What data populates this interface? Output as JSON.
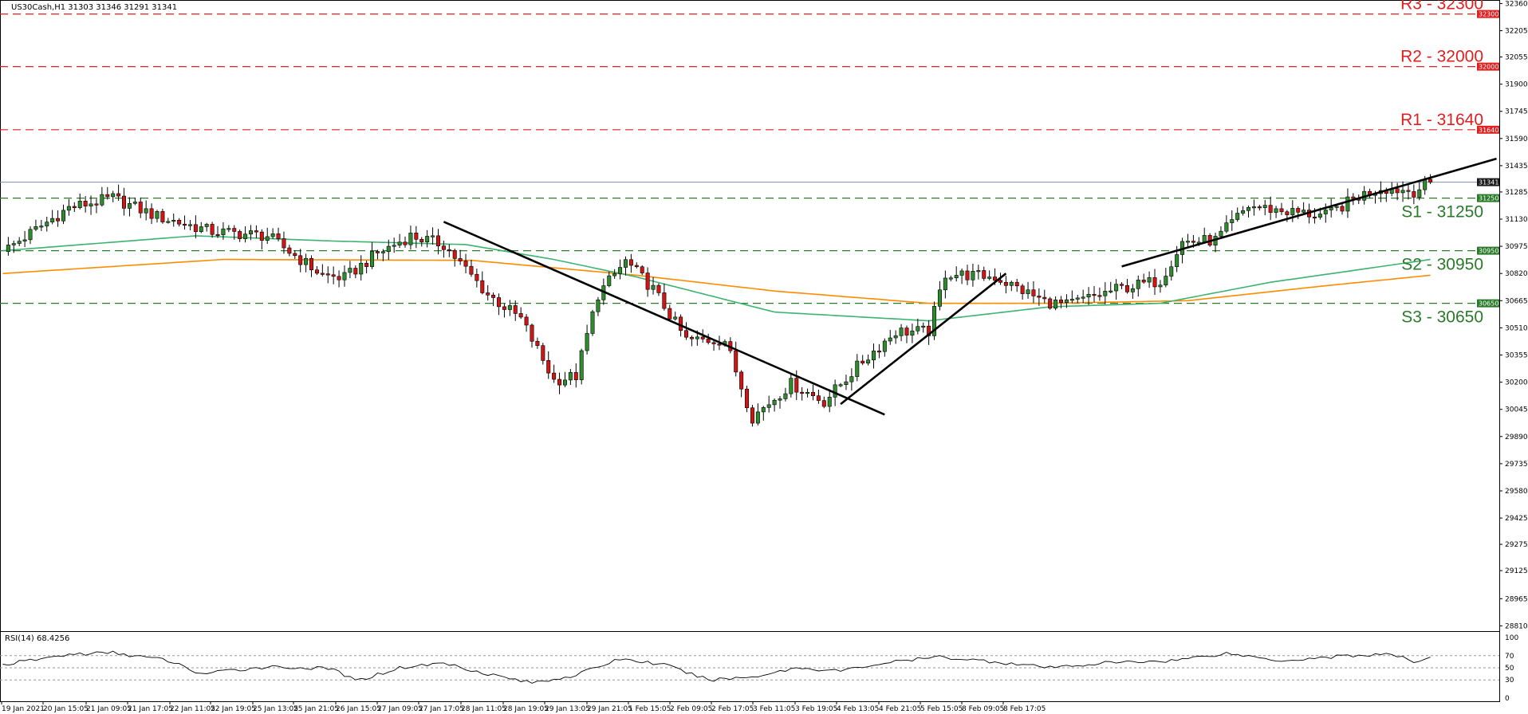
{
  "header": {
    "symbol_info": "US30Cash,H1  31303 31346 31291 31341",
    "rsi_label": "RSI(14) 68.4256"
  },
  "colors": {
    "bull": "#2e8b2e",
    "bear": "#d01515",
    "resistance": "#e02020",
    "support": "#2a7a2a",
    "ma_fast": "#3cb371",
    "ma_slow": "#ff8c00",
    "trendline": "#000000",
    "current_price": "#8090a8"
  },
  "chart_data": {
    "type": "candlestick",
    "title": "US30Cash,H1",
    "ylim": [
      28780,
      32380
    ],
    "y_ticks": [
      28810,
      28965,
      29125,
      29275,
      29425,
      29580,
      29735,
      29890,
      30045,
      30200,
      30355,
      30510,
      30665,
      30820,
      30975,
      31130,
      31285,
      31435,
      31590,
      31745,
      31900,
      32055,
      32205,
      32360
    ],
    "x_labels": [
      "19 Jan 2021",
      "20 Jan 15:05",
      "21 Jan 09:05",
      "21 Jan 17:05",
      "22 Jan 11:05",
      "22 Jan 19:05",
      "25 Jan 13:05",
      "25 Jan 21:05",
      "26 Jan 15:05",
      "27 Jan 09:05",
      "27 Jan 17:05",
      "28 Jan 11:05",
      "28 Jan 19:05",
      "29 Jan 13:05",
      "29 Jan 21:05",
      "1 Feb 15:05",
      "2 Feb 09:05",
      "2 Feb 17:05",
      "3 Feb 11:05",
      "3 Feb 19:05",
      "4 Feb 13:05",
      "4 Feb 21:05",
      "5 Feb 15:05",
      "8 Feb 09:05",
      "8 Feb 17:05"
    ],
    "levels": [
      {
        "label": "R3 - 32300",
        "tag": "32300",
        "value": 32300,
        "kind": "resistance"
      },
      {
        "label": "R2 - 32000",
        "tag": "32000",
        "value": 32000,
        "kind": "resistance"
      },
      {
        "label": "R1 - 31640",
        "tag": "31640",
        "value": 31640,
        "kind": "resistance"
      },
      {
        "label": "S1 - 31250",
        "tag": "31250",
        "value": 31250,
        "kind": "support"
      },
      {
        "label": "S2 - 30950",
        "tag": "30950",
        "value": 30950,
        "kind": "support"
      },
      {
        "label": "S3 - 30650",
        "tag": "30650",
        "value": 30650,
        "kind": "support"
      }
    ],
    "current_price": {
      "value": 31341,
      "tag": "31341"
    },
    "anchors": [
      {
        "i": 0,
        "v": 30945
      },
      {
        "i": 12,
        "v": 31195
      },
      {
        "i": 20,
        "v": 31250
      },
      {
        "i": 28,
        "v": 31145
      },
      {
        "i": 38,
        "v": 31060
      },
      {
        "i": 48,
        "v": 31035
      },
      {
        "i": 58,
        "v": 30810
      },
      {
        "i": 62,
        "v": 30795
      },
      {
        "i": 68,
        "v": 30935
      },
      {
        "i": 74,
        "v": 31035
      },
      {
        "i": 80,
        "v": 30985
      },
      {
        "i": 88,
        "v": 30700
      },
      {
        "i": 94,
        "v": 30560
      },
      {
        "i": 100,
        "v": 30210
      },
      {
        "i": 104,
        "v": 30235
      },
      {
        "i": 108,
        "v": 30700
      },
      {
        "i": 113,
        "v": 30890
      },
      {
        "i": 118,
        "v": 30730
      },
      {
        "i": 124,
        "v": 30440
      },
      {
        "i": 131,
        "v": 30440
      },
      {
        "i": 136,
        "v": 30000
      },
      {
        "i": 143,
        "v": 30190
      },
      {
        "i": 149,
        "v": 30090
      },
      {
        "i": 156,
        "v": 30320
      },
      {
        "i": 162,
        "v": 30490
      },
      {
        "i": 168,
        "v": 30490
      },
      {
        "i": 171,
        "v": 30820
      },
      {
        "i": 180,
        "v": 30800
      },
      {
        "i": 189,
        "v": 30660
      },
      {
        "i": 193,
        "v": 30640
      },
      {
        "i": 202,
        "v": 30730
      },
      {
        "i": 210,
        "v": 30780
      },
      {
        "i": 214,
        "v": 31000
      },
      {
        "i": 220,
        "v": 31010
      },
      {
        "i": 226,
        "v": 31205
      },
      {
        "i": 234,
        "v": 31170
      },
      {
        "i": 240,
        "v": 31150
      },
      {
        "i": 246,
        "v": 31260
      },
      {
        "i": 250,
        "v": 31310
      },
      {
        "i": 256,
        "v": 31290
      },
      {
        "i": 259,
        "v": 31341
      }
    ],
    "ma_fast": [
      {
        "i": 0,
        "v": 30950
      },
      {
        "i": 35,
        "v": 31035
      },
      {
        "i": 60,
        "v": 31005
      },
      {
        "i": 84,
        "v": 30985
      },
      {
        "i": 100,
        "v": 30900
      },
      {
        "i": 115,
        "v": 30800
      },
      {
        "i": 140,
        "v": 30600
      },
      {
        "i": 168,
        "v": 30550
      },
      {
        "i": 190,
        "v": 30630
      },
      {
        "i": 210,
        "v": 30650
      },
      {
        "i": 230,
        "v": 30770
      },
      {
        "i": 259,
        "v": 30900
      }
    ],
    "ma_slow": [
      {
        "i": 0,
        "v": 30820
      },
      {
        "i": 40,
        "v": 30900
      },
      {
        "i": 85,
        "v": 30895
      },
      {
        "i": 115,
        "v": 30810
      },
      {
        "i": 140,
        "v": 30720
      },
      {
        "i": 168,
        "v": 30650
      },
      {
        "i": 190,
        "v": 30650
      },
      {
        "i": 215,
        "v": 30665
      },
      {
        "i": 240,
        "v": 30750
      },
      {
        "i": 259,
        "v": 30810
      }
    ],
    "trendlines": [
      {
        "i1": 80,
        "v1": 31115,
        "i2": 160,
        "v2": 30015
      },
      {
        "i1": 152,
        "v1": 30075,
        "i2": 182,
        "v2": 30820
      },
      {
        "i1": 203,
        "v1": 30860,
        "i2": 271,
        "v2": 31475
      }
    ],
    "rsi": {
      "ylim": [
        0,
        100
      ],
      "ticks": [
        0,
        30,
        50,
        70,
        100
      ],
      "anchors": [
        {
          "i": 0,
          "v": 55
        },
        {
          "i": 12,
          "v": 72
        },
        {
          "i": 20,
          "v": 75
        },
        {
          "i": 30,
          "v": 62
        },
        {
          "i": 36,
          "v": 40
        },
        {
          "i": 48,
          "v": 52
        },
        {
          "i": 60,
          "v": 48
        },
        {
          "i": 64,
          "v": 28
        },
        {
          "i": 72,
          "v": 50
        },
        {
          "i": 80,
          "v": 58
        },
        {
          "i": 88,
          "v": 40
        },
        {
          "i": 96,
          "v": 25
        },
        {
          "i": 104,
          "v": 38
        },
        {
          "i": 112,
          "v": 65
        },
        {
          "i": 120,
          "v": 55
        },
        {
          "i": 128,
          "v": 30
        },
        {
          "i": 136,
          "v": 35
        },
        {
          "i": 144,
          "v": 50
        },
        {
          "i": 152,
          "v": 45
        },
        {
          "i": 160,
          "v": 58
        },
        {
          "i": 170,
          "v": 68
        },
        {
          "i": 180,
          "v": 60
        },
        {
          "i": 190,
          "v": 50
        },
        {
          "i": 200,
          "v": 58
        },
        {
          "i": 212,
          "v": 62
        },
        {
          "i": 222,
          "v": 74
        },
        {
          "i": 232,
          "v": 62
        },
        {
          "i": 244,
          "v": 70
        },
        {
          "i": 252,
          "v": 72
        },
        {
          "i": 256,
          "v": 60
        },
        {
          "i": 259,
          "v": 68
        }
      ]
    }
  }
}
